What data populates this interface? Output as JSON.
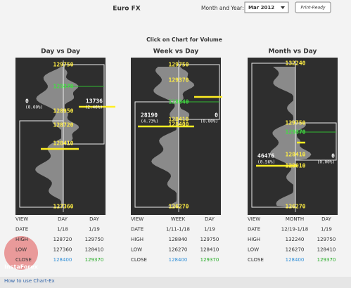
{
  "header": {
    "title": "Euro FX",
    "month_label": "Month and Year:",
    "month_value": "Mar 2012",
    "print_button": "Print-Ready"
  },
  "instruction": "Click on Chart for Volume",
  "panels": [
    {
      "title": "Day vs Day",
      "price_labels": [
        129750,
        129370,
        128950,
        128720,
        128410,
        127360
      ],
      "left_volume": "0",
      "left_pct": "(0.00%)",
      "right_volume": "13736",
      "right_pct": "(2.46%)",
      "table": [
        [
          "VIEW",
          "DAY",
          "DAY"
        ],
        [
          "DATE",
          "1/18",
          "1/19"
        ],
        [
          "HIGH",
          "128720",
          "129750"
        ],
        [
          "LOW",
          "127360",
          "128410"
        ],
        [
          "CLOSE",
          "128400",
          "129370"
        ]
      ]
    },
    {
      "title": "Week vs Day",
      "price_labels": [
        129750,
        129370,
        128840,
        128410,
        128400,
        126270
      ],
      "left_volume": "28190",
      "left_pct": "(4.73%)",
      "right_volume": "0",
      "right_pct": "(0.00%)",
      "table": [
        [
          "VIEW",
          "WEEK",
          "DAY"
        ],
        [
          "DATE",
          "1/11-1/18",
          "1/19"
        ],
        [
          "HIGH",
          "128840",
          "129750"
        ],
        [
          "LOW",
          "126270",
          "128410"
        ],
        [
          "CLOSE",
          "128400",
          "129370"
        ]
      ]
    },
    {
      "title": "Month vs Day",
      "price_labels": [
        132240,
        129750,
        129370,
        128410,
        128010,
        126270
      ],
      "left_volume": "46476",
      "left_pct": "(0.56%)",
      "right_volume": "0",
      "right_pct": "(0.00%)",
      "table": [
        [
          "VIEW",
          "MONTH",
          "DAY"
        ],
        [
          "DATE",
          "12/19-1/18",
          "1/19"
        ],
        [
          "HIGH",
          "132240",
          "129750"
        ],
        [
          "LOW",
          "126270",
          "128410"
        ],
        [
          "CLOSE",
          "128400",
          "129370"
        ]
      ]
    }
  ],
  "footer": "How to use Chart-Ex",
  "watermark": "InstaForex"
}
